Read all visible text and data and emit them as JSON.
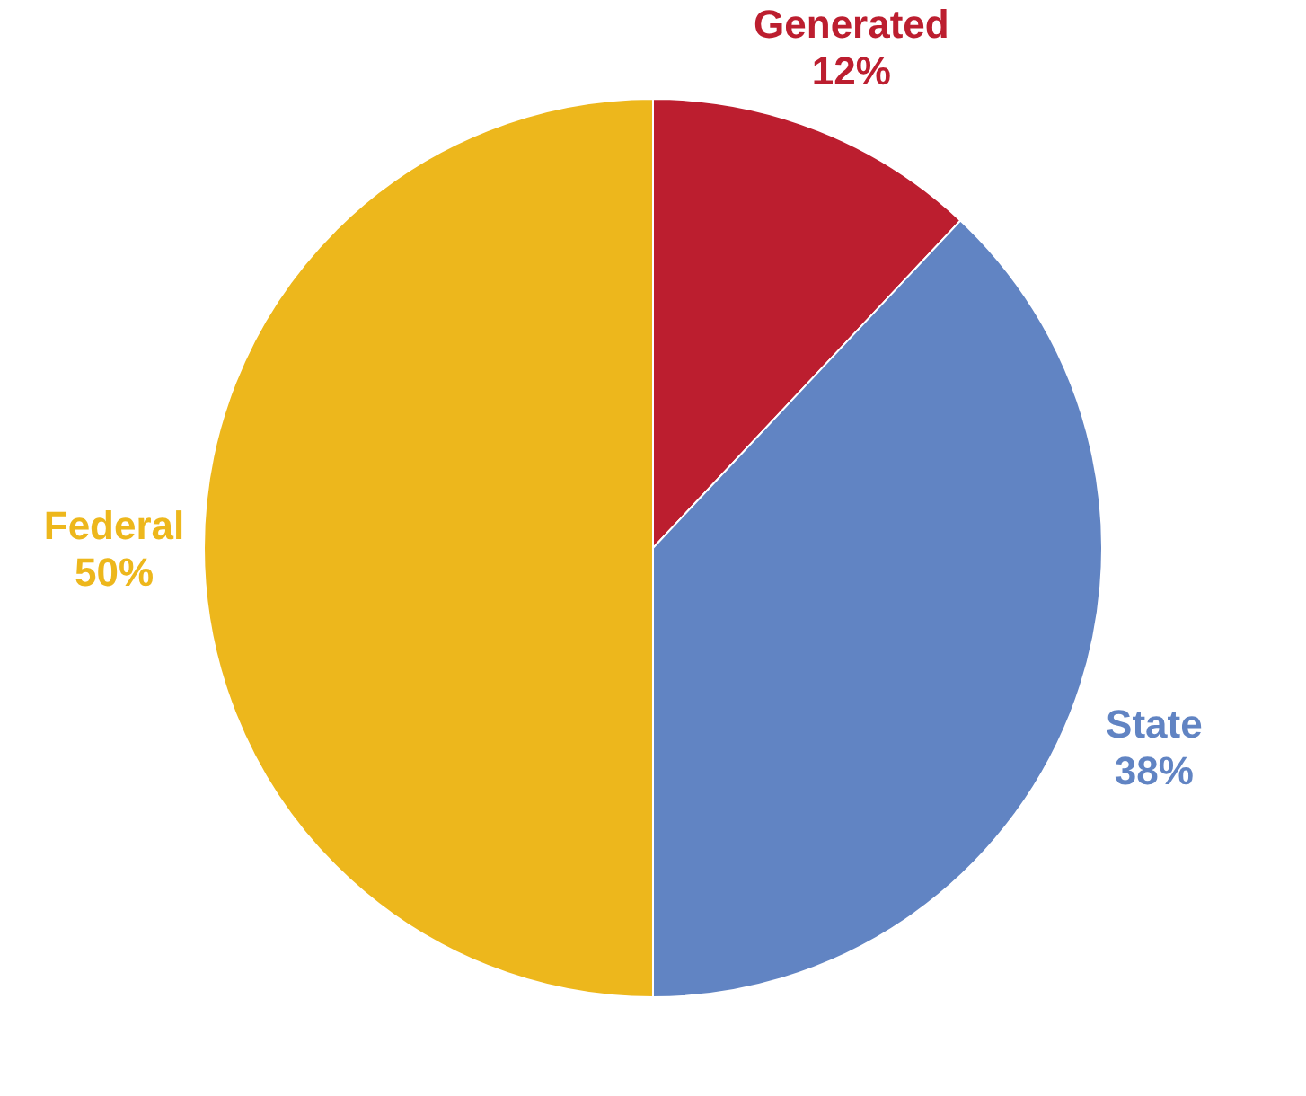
{
  "chart_data": {
    "type": "pie",
    "categories": [
      "Generated",
      "State",
      "Federal"
    ],
    "values": [
      12,
      38,
      50
    ],
    "colors": [
      "#bc1e2f",
      "#6184c3",
      "#edb71c"
    ],
    "value_labels": [
      "12%",
      "38%",
      "50%"
    ]
  }
}
